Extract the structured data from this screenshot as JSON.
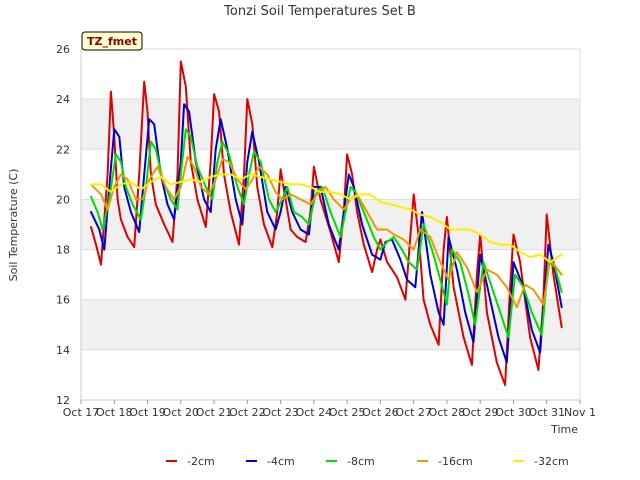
{
  "chart_data": {
    "type": "line",
    "title": "Tonzi Soil Temperatures Set B",
    "xlabel": "Time",
    "ylabel": "Soil Temperature (C)",
    "badge": "TZ_fmet",
    "xlim": [
      0,
      15
    ],
    "ylim": [
      12,
      26
    ],
    "x_ticks": [
      "Oct 17",
      "Oct 18",
      "Oct 19",
      "Oct 20",
      "Oct 21",
      "Oct 22",
      "Oct 23",
      "Oct 24",
      "Oct 25",
      "Oct 26",
      "Oct 27",
      "Oct 28",
      "Oct 29",
      "Oct 30",
      "Oct 31",
      "Nov 1"
    ],
    "y_ticks": [
      12,
      14,
      16,
      18,
      20,
      22,
      24,
      26
    ],
    "grid": true,
    "legend_position": "bottom",
    "series": [
      {
        "name": "-2cm",
        "color": "#dd0000",
        "x": [
          0.3,
          0.45,
          0.6,
          0.8,
          0.9,
          1.0,
          1.1,
          1.2,
          1.4,
          1.6,
          1.75,
          1.9,
          2.0,
          2.1,
          2.25,
          2.5,
          2.75,
          2.9,
          3.0,
          3.15,
          3.3,
          3.5,
          3.75,
          3.9,
          4.0,
          4.15,
          4.3,
          4.5,
          4.75,
          4.9,
          5.0,
          5.15,
          5.3,
          5.5,
          5.75,
          5.9,
          6.0,
          6.15,
          6.3,
          6.5,
          6.75,
          6.9,
          7.0,
          7.2,
          7.5,
          7.75,
          7.9,
          8.0,
          8.15,
          8.3,
          8.5,
          8.75,
          8.9,
          9.0,
          9.2,
          9.5,
          9.75,
          9.9,
          10.0,
          10.15,
          10.3,
          10.5,
          10.75,
          10.9,
          11.0,
          11.2,
          11.5,
          11.75,
          11.9,
          12.0,
          12.2,
          12.5,
          12.75,
          12.9,
          13.0,
          13.2,
          13.5,
          13.75,
          13.9,
          14.0,
          14.2,
          14.45
        ],
        "y": [
          18.9,
          18.2,
          17.4,
          21.0,
          24.3,
          22.5,
          20.0,
          19.2,
          18.5,
          18.1,
          21.0,
          24.7,
          23.5,
          21.0,
          19.8,
          19.0,
          18.3,
          21.0,
          25.5,
          24.5,
          21.5,
          20.0,
          18.9,
          21.5,
          24.2,
          23.5,
          21.0,
          19.5,
          18.2,
          21.0,
          24.0,
          23.0,
          20.5,
          19.0,
          18.1,
          19.5,
          21.2,
          20.0,
          18.8,
          18.5,
          18.3,
          19.5,
          21.3,
          20.0,
          18.7,
          17.5,
          19.5,
          21.8,
          21.0,
          19.5,
          18.2,
          17.1,
          18.0,
          18.4,
          17.5,
          16.9,
          16.0,
          18.5,
          20.2,
          18.5,
          16.0,
          15.0,
          14.2,
          18.0,
          19.3,
          16.5,
          14.5,
          13.4,
          17.0,
          18.6,
          15.5,
          13.5,
          12.6,
          16.5,
          18.6,
          17.5,
          14.5,
          13.2,
          16.0,
          19.4,
          17.0,
          14.9
        ]
      },
      {
        "name": "-4cm",
        "color": "#0000cc",
        "x": [
          0.3,
          0.55,
          0.7,
          0.85,
          1.0,
          1.15,
          1.3,
          1.5,
          1.75,
          1.9,
          2.05,
          2.2,
          2.4,
          2.6,
          2.8,
          3.0,
          3.1,
          3.25,
          3.45,
          3.7,
          3.9,
          4.05,
          4.2,
          4.4,
          4.65,
          4.85,
          5.0,
          5.15,
          5.35,
          5.6,
          5.85,
          6.0,
          6.15,
          6.35,
          6.6,
          6.85,
          7.0,
          7.2,
          7.45,
          7.75,
          7.9,
          8.05,
          8.2,
          8.45,
          8.75,
          9.0,
          9.15,
          9.35,
          9.6,
          9.8,
          10.05,
          10.25,
          10.5,
          10.75,
          10.9,
          11.05,
          11.3,
          11.55,
          11.8,
          12.0,
          12.3,
          12.55,
          12.8,
          13.0,
          13.3,
          13.55,
          13.8,
          14.05,
          14.2,
          14.45
        ],
        "y": [
          19.5,
          18.8,
          18.0,
          20.5,
          22.8,
          22.5,
          20.5,
          19.5,
          18.7,
          21.0,
          23.2,
          23.0,
          21.0,
          19.8,
          19.2,
          21.5,
          23.8,
          23.5,
          21.5,
          20.0,
          19.5,
          22.0,
          23.2,
          22.0,
          20.0,
          19.0,
          21.5,
          22.7,
          21.5,
          19.5,
          18.8,
          19.5,
          20.5,
          19.5,
          18.8,
          18.6,
          20.5,
          20.5,
          19.0,
          18.0,
          19.5,
          21.0,
          20.5,
          19.0,
          17.8,
          17.6,
          18.3,
          18.4,
          17.6,
          16.8,
          16.5,
          19.5,
          17.0,
          15.5,
          15.0,
          18.5,
          17.2,
          15.5,
          14.3,
          17.8,
          16.0,
          14.5,
          13.5,
          17.5,
          16.5,
          14.8,
          13.9,
          18.2,
          17.5,
          15.7
        ]
      },
      {
        "name": "-8cm",
        "color": "#00dd00",
        "x": [
          0.3,
          0.5,
          0.65,
          0.85,
          1.05,
          1.2,
          1.35,
          1.55,
          1.8,
          1.95,
          2.1,
          2.25,
          2.45,
          2.7,
          2.9,
          3.0,
          3.15,
          3.3,
          3.5,
          3.75,
          3.95,
          4.1,
          4.25,
          4.45,
          4.7,
          4.9,
          5.05,
          5.2,
          5.4,
          5.65,
          5.85,
          6.05,
          6.2,
          6.4,
          6.65,
          6.85,
          7.05,
          7.25,
          7.5,
          7.8,
          7.95,
          8.1,
          8.25,
          8.5,
          8.8,
          9.0,
          9.2,
          9.4,
          9.65,
          9.85,
          10.1,
          10.3,
          10.55,
          10.8,
          11.0,
          11.15,
          11.4,
          11.65,
          11.85,
          12.1,
          12.35,
          12.6,
          12.85,
          13.05,
          13.3,
          13.55,
          13.85,
          14.05,
          14.25,
          14.45
        ],
        "y": [
          20.1,
          19.5,
          18.8,
          20.0,
          21.8,
          21.5,
          20.5,
          19.8,
          19.2,
          20.5,
          22.3,
          22.0,
          20.8,
          20.0,
          19.6,
          21.0,
          22.8,
          22.5,
          21.3,
          20.5,
          20.0,
          21.5,
          22.3,
          21.8,
          20.5,
          19.8,
          21.0,
          21.9,
          21.5,
          20.0,
          19.5,
          20.0,
          20.5,
          19.5,
          19.3,
          19.0,
          20.2,
          20.5,
          19.5,
          18.5,
          19.5,
          20.5,
          20.3,
          19.5,
          18.5,
          18.0,
          18.3,
          18.5,
          18.0,
          17.5,
          17.2,
          19.0,
          18.0,
          16.8,
          15.8,
          18.0,
          17.5,
          16.2,
          15.0,
          17.5,
          16.5,
          15.5,
          14.5,
          17.0,
          16.5,
          15.5,
          14.6,
          17.5,
          17.3,
          16.3
        ]
      },
      {
        "name": "-16cm",
        "color": "#ee9900",
        "x": [
          0.3,
          0.6,
          0.8,
          1.0,
          1.2,
          1.4,
          1.65,
          1.85,
          2.05,
          2.3,
          2.55,
          2.8,
          3.0,
          3.2,
          3.4,
          3.6,
          3.85,
          4.05,
          4.25,
          4.45,
          4.7,
          4.95,
          5.15,
          5.35,
          5.6,
          5.85,
          6.05,
          6.3,
          6.6,
          6.9,
          7.1,
          7.35,
          7.6,
          7.9,
          8.1,
          8.3,
          8.6,
          8.9,
          9.2,
          9.4,
          9.7,
          10.0,
          10.2,
          10.5,
          10.8,
          11.05,
          11.3,
          11.6,
          11.9,
          12.2,
          12.5,
          12.8,
          13.1,
          13.35,
          13.6,
          13.9,
          14.1,
          14.45
        ],
        "y": [
          20.6,
          20.2,
          19.6,
          20.5,
          21.0,
          20.8,
          20.0,
          20.0,
          20.8,
          21.3,
          20.5,
          20.0,
          20.5,
          21.7,
          21.3,
          20.5,
          20.2,
          20.8,
          21.6,
          21.5,
          20.8,
          20.4,
          20.8,
          21.3,
          21.0,
          20.3,
          20.0,
          20.2,
          20.0,
          19.8,
          20.2,
          20.5,
          20.0,
          19.6,
          20.0,
          20.2,
          19.5,
          18.8,
          18.8,
          18.6,
          18.4,
          18.0,
          18.8,
          18.5,
          17.5,
          16.8,
          17.9,
          17.3,
          16.3,
          17.2,
          17.0,
          16.5,
          15.7,
          16.6,
          16.4,
          15.8,
          17.6,
          17.0
        ]
      },
      {
        "name": "-32cm",
        "color": "#ffee00",
        "x": [
          0.3,
          0.6,
          0.9,
          1.2,
          1.5,
          1.8,
          2.1,
          2.4,
          2.7,
          3.0,
          3.3,
          3.6,
          3.9,
          4.2,
          4.5,
          4.8,
          5.1,
          5.4,
          5.7,
          6.0,
          6.3,
          6.6,
          6.9,
          7.2,
          7.5,
          7.8,
          8.1,
          8.4,
          8.7,
          9.0,
          9.3,
          9.6,
          9.9,
          10.2,
          10.5,
          10.8,
          11.1,
          11.4,
          11.7,
          12.0,
          12.3,
          12.6,
          12.9,
          13.2,
          13.5,
          13.8,
          14.1,
          14.45
        ],
        "y": [
          20.6,
          20.6,
          20.3,
          20.6,
          20.7,
          20.4,
          20.7,
          20.9,
          20.6,
          20.7,
          20.8,
          20.7,
          20.9,
          21.0,
          21.0,
          20.8,
          21.0,
          20.9,
          20.8,
          20.7,
          20.6,
          20.6,
          20.5,
          20.3,
          20.3,
          20.2,
          20.0,
          20.2,
          20.2,
          19.9,
          19.8,
          19.7,
          19.6,
          19.4,
          19.3,
          19.1,
          18.8,
          18.8,
          18.8,
          18.6,
          18.3,
          18.2,
          18.2,
          17.9,
          17.7,
          17.8,
          17.5,
          17.8
        ]
      }
    ]
  }
}
